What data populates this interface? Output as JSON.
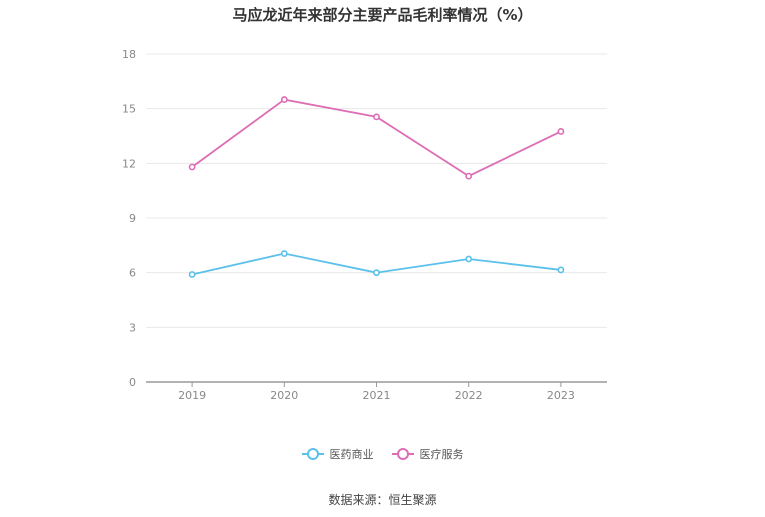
{
  "title": "马应龙近年来部分主要产品毛利率情况（%）",
  "source": "数据来源：恒生聚源",
  "chart_data": {
    "type": "line",
    "categories": [
      "2019",
      "2020",
      "2021",
      "2022",
      "2023"
    ],
    "series": [
      {
        "name": "医药商业",
        "color": "#5bc0eb",
        "values": [
          5.9,
          7.05,
          6.0,
          6.75,
          6.15
        ]
      },
      {
        "name": "医疗服务",
        "color": "#dd6db4",
        "values": [
          11.8,
          15.5,
          14.55,
          11.3,
          13.75
        ]
      }
    ],
    "yticks": [
      "0",
      "3",
      "6",
      "9",
      "12",
      "15",
      "18"
    ],
    "ylim": [
      0,
      18
    ],
    "grid": true,
    "legend_position": "bottom"
  }
}
